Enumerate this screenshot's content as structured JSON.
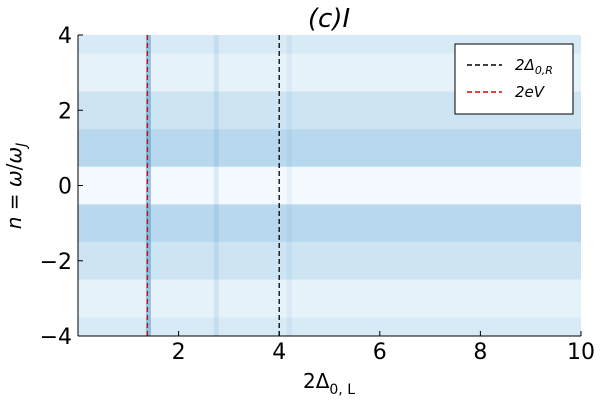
{
  "chart_data": {
    "type": "heatmap",
    "title": "(c)I",
    "xlabel": "2Δ0,L",
    "ylabel": "n = ω/ωJ",
    "xlim": [
      0,
      10
    ],
    "ylim": [
      -4,
      4
    ],
    "xticks": [
      2,
      4,
      6,
      8,
      10
    ],
    "xtick_labels": [
      "2",
      "4",
      "6",
      "8",
      "10"
    ],
    "yticks": [
      -4,
      -2,
      0,
      2,
      4
    ],
    "ytick_labels": [
      "−4",
      "−2",
      "0",
      "2",
      "4"
    ],
    "grid": false,
    "colormap": "blues",
    "rows": [
      {
        "n": -4,
        "intensity": 0.22
      },
      {
        "n": -3,
        "intensity": 0.12
      },
      {
        "n": -2,
        "intensity": 0.3
      },
      {
        "n": -1,
        "intensity": 0.45
      },
      {
        "n": 0,
        "intensity": 0.03
      },
      {
        "n": 1,
        "intensity": 0.45
      },
      {
        "n": 2,
        "intensity": 0.3
      },
      {
        "n": 3,
        "intensity": 0.12
      },
      {
        "n": 4,
        "intensity": 0.22
      }
    ],
    "resonances": [
      {
        "x": 1.4,
        "strength": 0.9
      },
      {
        "x": 2.75,
        "strength": 0.25
      },
      {
        "x": 4.2,
        "strength": 0.15
      }
    ],
    "vlines": [
      {
        "name": "2Δ0,R",
        "x": 4.0,
        "color": "#000000",
        "style": "dashed"
      },
      {
        "name": "2eV",
        "x": 1.38,
        "color": "#dd0000",
        "style": "dashed"
      }
    ],
    "legend": {
      "position": "top-right",
      "entries": [
        {
          "base": "2Δ",
          "sub": "0,R",
          "color": "#000000"
        },
        {
          "base": "2eV",
          "sub": "",
          "color": "#dd0000"
        }
      ]
    }
  }
}
